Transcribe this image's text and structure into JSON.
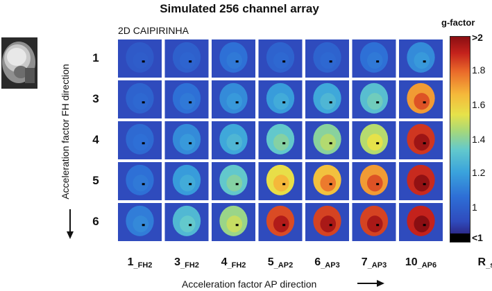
{
  "title": "Simulated 256 channel array",
  "subtitle": "2D CAIPIRINHA",
  "y_axis_label": "Acceleration factor FH direction",
  "x_axis_label": "Acceleration factor AP direction",
  "colorbar": {
    "title": "g-factor",
    "ticks": [
      ">2",
      "1.8",
      "1.6",
      "1.4",
      "1.2",
      "1",
      "<1"
    ]
  },
  "rows": [
    {
      "label": "1",
      "gfactor": [
        1.05,
        1.07,
        1.12,
        1.08,
        1.08,
        1.12,
        1.18
      ]
    },
    {
      "label": "3",
      "gfactor": [
        1.08,
        1.12,
        1.18,
        1.22,
        1.25,
        1.32,
        1.75
      ]
    },
    {
      "label": "4",
      "gfactor": [
        1.1,
        1.18,
        1.25,
        1.35,
        1.42,
        1.5,
        1.95
      ]
    },
    {
      "label": "5",
      "gfactor": [
        1.12,
        1.22,
        1.35,
        1.6,
        1.68,
        1.75,
        1.98
      ]
    },
    {
      "label": "6",
      "gfactor": [
        1.15,
        1.3,
        1.45,
        1.9,
        1.92,
        1.92,
        2.0
      ]
    }
  ],
  "columns": [
    {
      "main": "1",
      "sub": "_FH2"
    },
    {
      "main": "3",
      "sub": "_FH2"
    },
    {
      "main": "4",
      "sub": "_FH2"
    },
    {
      "main": "5",
      "sub": "_AP2"
    },
    {
      "main": "6",
      "sub": "_AP3"
    },
    {
      "main": "7",
      "sub": "_AP3"
    },
    {
      "main": "10",
      "sub": "_AP6"
    }
  ],
  "r_shift_label": {
    "main": "R",
    "sub": "_shift"
  }
}
